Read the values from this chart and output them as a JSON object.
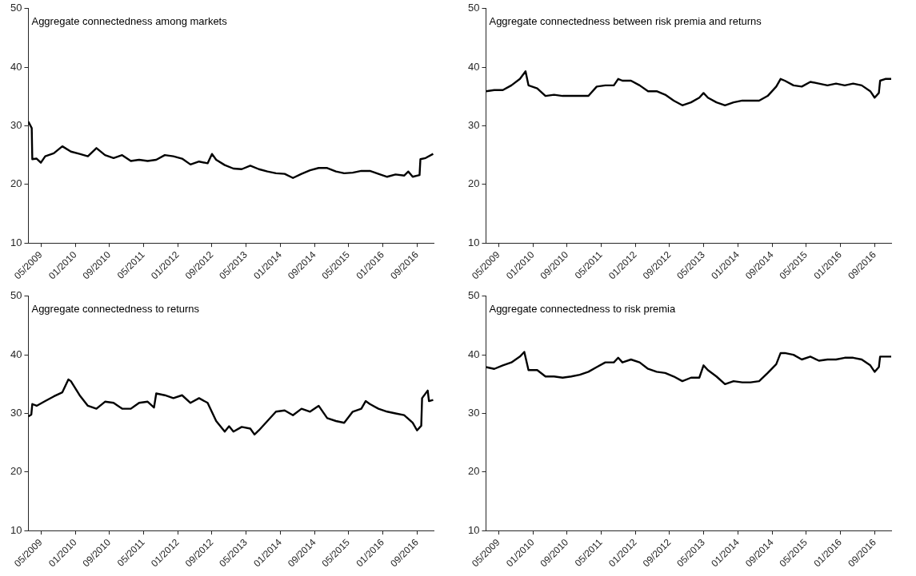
{
  "chart_data": [
    {
      "type": "line",
      "title": "Aggregate connectedness among markets",
      "color": "#000000",
      "x": [
        "2009-02-01",
        "2009-02-25",
        "2009-03-01",
        "2009-04-01",
        "2009-05-01",
        "2009-06-01",
        "2009-08-01",
        "2009-10-01",
        "2009-12-01",
        "2010-02-01",
        "2010-04-01",
        "2010-06-01",
        "2010-08-01",
        "2010-10-01",
        "2010-12-01",
        "2011-02-01",
        "2011-04-01",
        "2011-06-01",
        "2011-08-01",
        "2011-10-01",
        "2011-12-01",
        "2012-02-01",
        "2012-04-01",
        "2012-06-01",
        "2012-08-01",
        "2012-09-01",
        "2012-10-01",
        "2012-12-01",
        "2013-02-01",
        "2013-04-01",
        "2013-06-01",
        "2013-08-01",
        "2013-10-01",
        "2013-12-01",
        "2014-02-01",
        "2014-04-01",
        "2014-06-01",
        "2014-08-01",
        "2014-10-01",
        "2014-12-01",
        "2015-02-01",
        "2015-04-01",
        "2015-06-01",
        "2015-08-01",
        "2015-10-01",
        "2015-12-01",
        "2016-02-01",
        "2016-04-01",
        "2016-06-01",
        "2016-07-01",
        "2016-08-01",
        "2016-09-19",
        "2016-09-25",
        "2016-11-01",
        "2016-12-25"
      ],
      "values": [
        30.7,
        29.6,
        24.3,
        24.4,
        23.7,
        24.8,
        25.3,
        26.5,
        25.6,
        25.2,
        24.8,
        26.2,
        25.0,
        24.5,
        25.0,
        24.0,
        24.2,
        24.0,
        24.2,
        25.0,
        24.8,
        24.4,
        23.4,
        23.9,
        23.6,
        25.2,
        24.2,
        23.3,
        22.7,
        22.6,
        23.2,
        22.6,
        22.2,
        21.9,
        21.8,
        21.1,
        21.8,
        22.4,
        22.8,
        22.8,
        22.2,
        21.9,
        22.0,
        22.3,
        22.3,
        21.8,
        21.3,
        21.7,
        21.5,
        22.2,
        21.3,
        21.6,
        24.3,
        24.5,
        25.2
      ],
      "xlim": [
        "2009-02-01",
        "2016-12-28"
      ],
      "xticks": [
        {
          "value": "2009-05-01",
          "label": "05/2009"
        },
        {
          "value": "2010-01-01",
          "label": "01/2010"
        },
        {
          "value": "2010-09-01",
          "label": "09/2010"
        },
        {
          "value": "2011-05-01",
          "label": "05/2011"
        },
        {
          "value": "2012-01-01",
          "label": "01/2012"
        },
        {
          "value": "2012-09-01",
          "label": "09/2012"
        },
        {
          "value": "2013-05-01",
          "label": "05/2013"
        },
        {
          "value": "2014-01-01",
          "label": "01/2014"
        },
        {
          "value": "2014-09-01",
          "label": "09/2014"
        },
        {
          "value": "2015-05-01",
          "label": "05/2015"
        },
        {
          "value": "2016-01-01",
          "label": "01/2016"
        },
        {
          "value": "2016-09-01",
          "label": "09/2016"
        }
      ],
      "ylim": [
        10,
        50
      ],
      "yticks": [
        10,
        20,
        30,
        40,
        50
      ]
    },
    {
      "type": "line",
      "title": "Aggregate connectedness between risk premia and returns",
      "color": "#000000",
      "x": [
        "2009-02-01",
        "2009-04-01",
        "2009-06-01",
        "2009-08-01",
        "2009-10-01",
        "2009-11-10",
        "2009-12-01",
        "2010-02-01",
        "2010-04-01",
        "2010-06-01",
        "2010-08-01",
        "2010-10-01",
        "2010-12-01",
        "2011-02-01",
        "2011-04-01",
        "2011-06-01",
        "2011-08-01",
        "2011-09-01",
        "2011-10-01",
        "2011-12-01",
        "2012-02-01",
        "2012-04-01",
        "2012-06-01",
        "2012-08-01",
        "2012-10-01",
        "2012-12-01",
        "2013-02-01",
        "2013-04-01",
        "2013-05-01",
        "2013-06-01",
        "2013-08-01",
        "2013-10-01",
        "2013-12-01",
        "2014-02-01",
        "2014-04-01",
        "2014-06-01",
        "2014-08-01",
        "2014-10-01",
        "2014-11-01",
        "2014-12-01",
        "2015-02-01",
        "2015-04-01",
        "2015-06-01",
        "2015-08-01",
        "2015-10-01",
        "2015-12-01",
        "2016-02-01",
        "2016-04-01",
        "2016-06-01",
        "2016-08-01",
        "2016-09-01",
        "2016-10-01",
        "2016-10-10",
        "2016-11-16",
        "2016-12-28"
      ],
      "values": [
        35.9,
        36.1,
        36.1,
        36.9,
        38.0,
        39.3,
        36.9,
        36.4,
        35.1,
        35.3,
        35.1,
        35.1,
        35.1,
        35.1,
        36.7,
        36.9,
        36.9,
        38.0,
        37.7,
        37.7,
        36.9,
        35.9,
        35.9,
        35.3,
        34.3,
        33.5,
        34.0,
        34.8,
        35.6,
        34.8,
        34.0,
        33.5,
        34.0,
        34.3,
        34.3,
        34.3,
        35.1,
        36.7,
        38.0,
        37.7,
        36.9,
        36.7,
        37.5,
        37.2,
        36.9,
        37.2,
        36.9,
        37.2,
        36.9,
        35.9,
        34.8,
        35.6,
        37.7,
        38.0,
        38.0
      ],
      "xlim": [
        "2009-02-01",
        "2016-12-28"
      ],
      "xticks": [
        {
          "value": "2009-05-01",
          "label": "05/2009"
        },
        {
          "value": "2010-01-01",
          "label": "01/2010"
        },
        {
          "value": "2010-09-01",
          "label": "09/2010"
        },
        {
          "value": "2011-05-01",
          "label": "05/2011"
        },
        {
          "value": "2012-01-01",
          "label": "01/2012"
        },
        {
          "value": "2012-09-01",
          "label": "09/2012"
        },
        {
          "value": "2013-05-01",
          "label": "05/2013"
        },
        {
          "value": "2014-01-01",
          "label": "01/2014"
        },
        {
          "value": "2014-09-01",
          "label": "09/2014"
        },
        {
          "value": "2015-05-01",
          "label": "05/2015"
        },
        {
          "value": "2016-01-01",
          "label": "01/2016"
        },
        {
          "value": "2016-09-01",
          "label": "09/2016"
        }
      ],
      "ylim": [
        10,
        50
      ],
      "yticks": [
        10,
        20,
        30,
        40,
        50
      ]
    },
    {
      "type": "line",
      "title": "Aggregate connectedness to returns",
      "color": "#000000",
      "x": [
        "2009-02-01",
        "2009-02-22",
        "2009-03-01",
        "2009-04-01",
        "2009-06-01",
        "2009-08-01",
        "2009-10-01",
        "2009-11-13",
        "2009-12-01",
        "2010-02-01",
        "2010-04-01",
        "2010-06-01",
        "2010-08-01",
        "2010-10-01",
        "2010-12-01",
        "2011-02-01",
        "2011-04-01",
        "2011-06-01",
        "2011-07-16",
        "2011-08-01",
        "2011-10-01",
        "2011-12-01",
        "2012-02-01",
        "2012-04-01",
        "2012-06-01",
        "2012-08-01",
        "2012-10-01",
        "2012-12-01",
        "2013-01-01",
        "2013-02-01",
        "2013-04-01",
        "2013-06-01",
        "2013-07-01",
        "2013-08-01",
        "2013-10-01",
        "2013-12-01",
        "2014-02-01",
        "2014-04-01",
        "2014-06-01",
        "2014-08-01",
        "2014-10-01",
        "2014-12-01",
        "2015-02-01",
        "2015-04-01",
        "2015-06-01",
        "2015-08-01",
        "2015-09-01",
        "2015-10-01",
        "2015-12-01",
        "2016-02-01",
        "2016-04-01",
        "2016-06-01",
        "2016-08-01",
        "2016-09-01",
        "2016-10-01",
        "2016-10-07",
        "2016-11-16",
        "2016-11-25",
        "2016-12-25"
      ],
      "values": [
        29.5,
        29.8,
        31.6,
        31.3,
        32.1,
        32.9,
        33.6,
        35.8,
        35.5,
        33.1,
        31.3,
        30.8,
        32.0,
        31.8,
        30.8,
        30.8,
        31.8,
        32.0,
        31.0,
        33.4,
        33.1,
        32.6,
        33.1,
        31.8,
        32.6,
        31.8,
        28.7,
        26.9,
        27.8,
        26.9,
        27.7,
        27.4,
        26.4,
        27.1,
        28.7,
        30.3,
        30.5,
        29.7,
        30.8,
        30.3,
        31.3,
        29.2,
        28.7,
        28.4,
        30.3,
        30.8,
        32.1,
        31.6,
        30.8,
        30.3,
        30.0,
        29.7,
        28.4,
        27.1,
        27.9,
        32.6,
        33.9,
        32.1,
        32.3
      ],
      "xlim": [
        "2009-02-01",
        "2016-12-28"
      ],
      "xticks": [
        {
          "value": "2009-05-01",
          "label": "05/2009"
        },
        {
          "value": "2010-01-01",
          "label": "01/2010"
        },
        {
          "value": "2010-09-01",
          "label": "09/2010"
        },
        {
          "value": "2011-05-01",
          "label": "05/2011"
        },
        {
          "value": "2012-01-01",
          "label": "01/2012"
        },
        {
          "value": "2012-09-01",
          "label": "09/2012"
        },
        {
          "value": "2013-05-01",
          "label": "05/2013"
        },
        {
          "value": "2014-01-01",
          "label": "01/2014"
        },
        {
          "value": "2014-09-01",
          "label": "09/2014"
        },
        {
          "value": "2015-05-01",
          "label": "05/2015"
        },
        {
          "value": "2016-01-01",
          "label": "01/2016"
        },
        {
          "value": "2016-09-01",
          "label": "09/2016"
        }
      ],
      "ylim": [
        10,
        50
      ],
      "yticks": [
        10,
        20,
        30,
        40,
        50
      ]
    },
    {
      "type": "line",
      "title": "Aggregate connectedness to risk premia",
      "color": "#000000",
      "x": [
        "2009-02-01",
        "2009-04-01",
        "2009-06-01",
        "2009-08-01",
        "2009-10-01",
        "2009-11-01",
        "2009-12-01",
        "2010-02-01",
        "2010-04-01",
        "2010-06-01",
        "2010-08-01",
        "2010-10-01",
        "2010-12-01",
        "2011-02-01",
        "2011-04-01",
        "2011-06-01",
        "2011-08-01",
        "2011-09-01",
        "2011-10-01",
        "2011-12-01",
        "2012-02-01",
        "2012-04-01",
        "2012-06-01",
        "2012-08-01",
        "2012-10-01",
        "2012-12-01",
        "2013-02-01",
        "2013-04-01",
        "2013-05-01",
        "2013-06-01",
        "2013-08-01",
        "2013-10-01",
        "2013-12-01",
        "2014-02-01",
        "2014-04-01",
        "2014-06-01",
        "2014-08-01",
        "2014-10-01",
        "2014-11-01",
        "2014-12-01",
        "2015-02-01",
        "2015-04-01",
        "2015-06-01",
        "2015-08-01",
        "2015-10-01",
        "2015-12-01",
        "2016-02-01",
        "2016-04-01",
        "2016-06-01",
        "2016-08-01",
        "2016-09-01",
        "2016-10-01",
        "2016-10-10",
        "2016-12-28"
      ],
      "values": [
        37.9,
        37.6,
        38.2,
        38.7,
        39.7,
        40.5,
        37.4,
        37.4,
        36.3,
        36.3,
        36.1,
        36.3,
        36.6,
        37.1,
        37.9,
        38.7,
        38.7,
        39.5,
        38.7,
        39.2,
        38.7,
        37.6,
        37.1,
        36.9,
        36.3,
        35.5,
        36.1,
        36.1,
        38.2,
        37.4,
        36.3,
        35.0,
        35.5,
        35.3,
        35.3,
        35.5,
        36.9,
        38.4,
        40.3,
        40.3,
        40.0,
        39.2,
        39.7,
        39.0,
        39.2,
        39.2,
        39.5,
        39.5,
        39.2,
        38.2,
        37.1,
        37.9,
        39.7,
        39.7
      ],
      "xlim": [
        "2009-02-01",
        "2016-12-28"
      ],
      "xticks": [
        {
          "value": "2009-05-01",
          "label": "05/2009"
        },
        {
          "value": "2010-01-01",
          "label": "01/2010"
        },
        {
          "value": "2010-09-01",
          "label": "09/2010"
        },
        {
          "value": "2011-05-01",
          "label": "05/2011"
        },
        {
          "value": "2012-01-01",
          "label": "01/2012"
        },
        {
          "value": "2012-09-01",
          "label": "09/2012"
        },
        {
          "value": "2013-05-01",
          "label": "05/2013"
        },
        {
          "value": "2014-01-01",
          "label": "01/2014"
        },
        {
          "value": "2014-09-01",
          "label": "09/2014"
        },
        {
          "value": "2015-05-01",
          "label": "05/2015"
        },
        {
          "value": "2016-01-01",
          "label": "01/2016"
        },
        {
          "value": "2016-09-01",
          "label": "09/2016"
        }
      ],
      "ylim": [
        10,
        50
      ],
      "yticks": [
        10,
        20,
        30,
        40,
        50
      ]
    }
  ]
}
